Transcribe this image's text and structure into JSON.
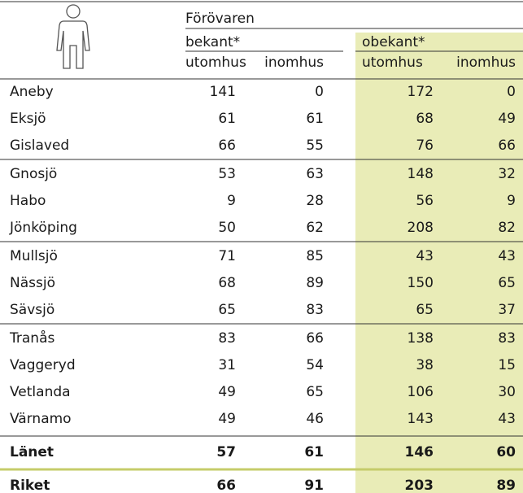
{
  "table": {
    "group": "Förövaren",
    "subgroups": [
      "bekant*",
      "obekant*"
    ],
    "columns": [
      "utomhus",
      "inomhus",
      "utomhus",
      "inomhus"
    ],
    "row_groups": [
      [
        [
          "Aneby",
          141,
          0,
          172,
          0
        ],
        [
          "Eksjö",
          61,
          61,
          68,
          49
        ],
        [
          "Gislaved",
          66,
          55,
          76,
          66
        ]
      ],
      [
        [
          "Gnosjö",
          53,
          63,
          148,
          32
        ],
        [
          "Habo",
          9,
          28,
          56,
          9
        ],
        [
          "Jönköping",
          50,
          62,
          208,
          82
        ]
      ],
      [
        [
          "Mullsjö",
          71,
          85,
          43,
          43
        ],
        [
          "Nässjö",
          68,
          89,
          150,
          65
        ],
        [
          "Sävsjö",
          65,
          83,
          65,
          37
        ]
      ],
      [
        [
          "Tranås",
          83,
          66,
          138,
          83
        ],
        [
          "Vaggeryd",
          31,
          54,
          38,
          15
        ],
        [
          "Vetlanda",
          49,
          65,
          106,
          30
        ],
        [
          "Värnamo",
          49,
          46,
          143,
          43
        ]
      ]
    ],
    "totals": [
      [
        "Länet",
        57,
        61,
        146,
        60
      ],
      [
        "Riket",
        66,
        91,
        203,
        89
      ]
    ]
  }
}
